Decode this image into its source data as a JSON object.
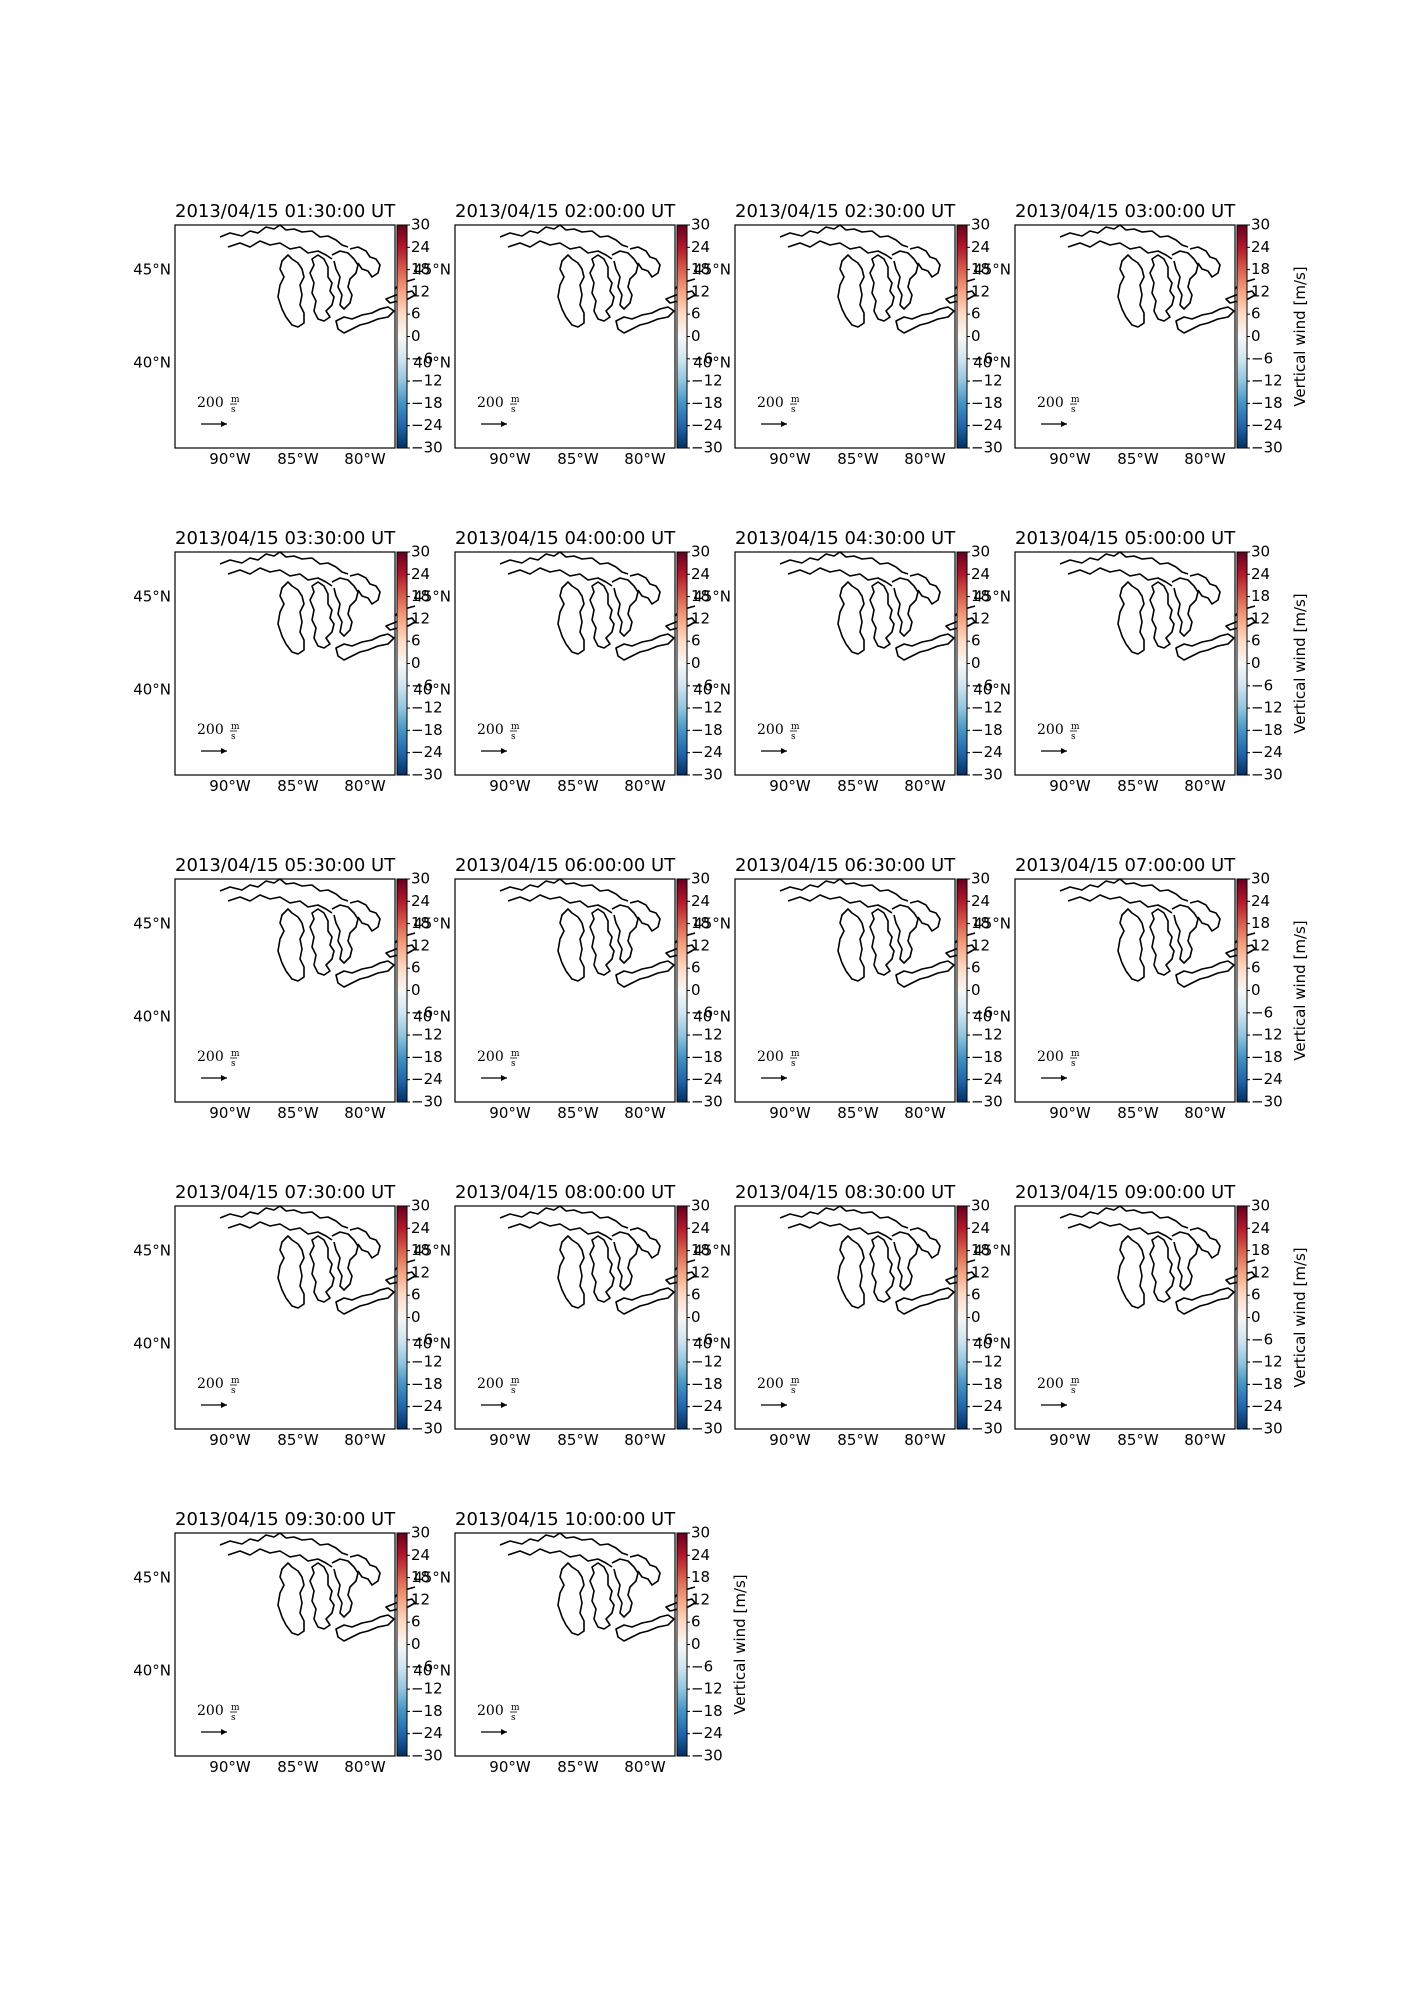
{
  "figure": {
    "colors": {
      "cmap": [
        "#053061",
        "#2166ac",
        "#4393c3",
        "#92c5de",
        "#d1e5f0",
        "#f7f7f7",
        "#fddbc7",
        "#f4a582",
        "#d6604d",
        "#b2182b",
        "#67001f"
      ],
      "coast": "#000000"
    },
    "lon_ticks": [
      "90°W",
      "85°W",
      "80°W"
    ],
    "lat_ticks": [
      "45°N",
      "40°N"
    ],
    "colorbar": {
      "label": "Vertical wind [m/s]",
      "ticks": [
        "30",
        "24",
        "18",
        "12",
        "6",
        "0",
        "−6",
        "−12",
        "−18",
        "−24",
        "−30"
      ],
      "range": [
        -30,
        30
      ]
    },
    "quiver_key": {
      "value": "200",
      "unit_num": "m",
      "unit_den": "s"
    }
  },
  "panels": [
    {
      "title": "2013/04/15 01:30:00 UT"
    },
    {
      "title": "2013/04/15 02:00:00 UT"
    },
    {
      "title": "2013/04/15 02:30:00 UT"
    },
    {
      "title": "2013/04/15 03:00:00 UT"
    },
    {
      "title": "2013/04/15 03:30:00 UT"
    },
    {
      "title": "2013/04/15 04:00:00 UT"
    },
    {
      "title": "2013/04/15 04:30:00 UT"
    },
    {
      "title": "2013/04/15 05:00:00 UT"
    },
    {
      "title": "2013/04/15 05:30:00 UT"
    },
    {
      "title": "2013/04/15 06:00:00 UT"
    },
    {
      "title": "2013/04/15 06:30:00 UT"
    },
    {
      "title": "2013/04/15 07:00:00 UT"
    },
    {
      "title": "2013/04/15 07:30:00 UT"
    },
    {
      "title": "2013/04/15 08:00:00 UT"
    },
    {
      "title": "2013/04/15 08:30:00 UT"
    },
    {
      "title": "2013/04/15 09:00:00 UT"
    },
    {
      "title": "2013/04/15 09:30:00 UT"
    },
    {
      "title": "2013/04/15 10:00:00 UT"
    }
  ],
  "chart_data": {
    "type": "heatmap",
    "title": "",
    "xlabel": "",
    "ylabel": "",
    "x_ticks": [
      "90°W",
      "85°W",
      "80°W"
    ],
    "y_ticks": [
      "45°N",
      "40°N"
    ],
    "colorbar_label": "Vertical wind [m/s]",
    "colorbar_range": [
      -30,
      30
    ],
    "colorbar_ticks": [
      30,
      24,
      18,
      12,
      6,
      0,
      -6,
      -12,
      -18,
      -24,
      -30
    ],
    "panel_titles": [
      "2013/04/15 01:30:00 UT",
      "2013/04/15 02:00:00 UT",
      "2013/04/15 02:30:00 UT",
      "2013/04/15 03:00:00 UT",
      "2013/04/15 03:30:00 UT",
      "2013/04/15 04:00:00 UT",
      "2013/04/15 04:30:00 UT",
      "2013/04/15 05:00:00 UT",
      "2013/04/15 05:30:00 UT",
      "2013/04/15 06:00:00 UT",
      "2013/04/15 06:30:00 UT",
      "2013/04/15 07:00:00 UT",
      "2013/04/15 07:30:00 UT",
      "2013/04/15 08:00:00 UT",
      "2013/04/15 08:30:00 UT",
      "2013/04/15 09:00:00 UT",
      "2013/04/15 09:30:00 UT",
      "2013/04/15 10:00:00 UT"
    ],
    "quiver_key": "200 m/s",
    "grid": false
  }
}
